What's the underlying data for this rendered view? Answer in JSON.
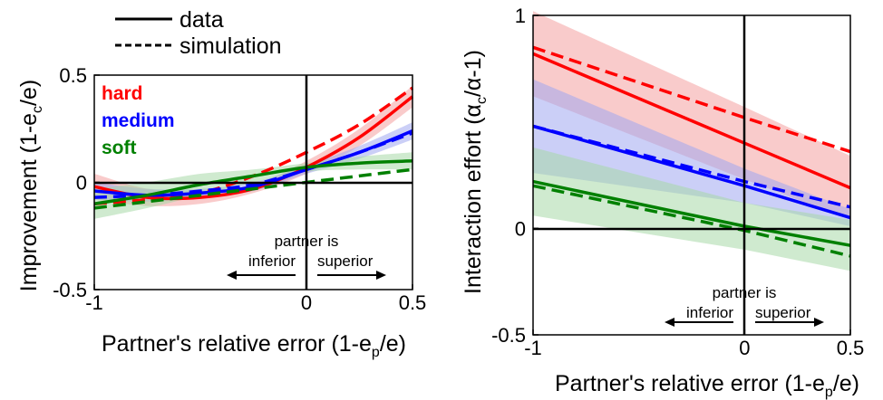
{
  "legend": {
    "solid_label": "data",
    "dashed_label": "simulation"
  },
  "annotation": {
    "line1": "partner is",
    "inferior": "inferior",
    "superior": "superior"
  },
  "colors": {
    "hard": "#ff0000",
    "medium": "#0000ff",
    "soft": "#008000",
    "hard_band": "#f4a0a0",
    "medium_band": "#a0a8f0",
    "soft_band": "#a8d8a8"
  },
  "chart_data": [
    {
      "type": "line",
      "title": "",
      "xlabel": "Partner's relative error (1-e_p/e)",
      "ylabel": "Improvement (1-e_c/e)",
      "xlim": [
        -1,
        0.5
      ],
      "ylim": [
        -0.5,
        0.5
      ],
      "x_ticks": [
        "-1",
        "0",
        "0.5"
      ],
      "y_ticks": [
        "-0.5",
        "0",
        "0.5"
      ],
      "grid": false,
      "legend_position": "top-left",
      "reference_lines": {
        "horizontal_at": 0,
        "vertical_at": 0
      },
      "x": [
        -1,
        -0.75,
        -0.5,
        -0.25,
        0,
        0.25,
        0.5
      ],
      "series": [
        {
          "name": "hard",
          "data": [
            -0.02,
            -0.07,
            -0.07,
            -0.03,
            0.07,
            0.21,
            0.4
          ],
          "simulation": [
            -0.1,
            -0.08,
            -0.05,
            0.03,
            0.14,
            0.27,
            0.44
          ],
          "band": [
            0.06,
            0.04,
            0.03,
            0.02,
            0.03,
            0.04,
            0.05
          ]
        },
        {
          "name": "medium",
          "data": [
            -0.04,
            -0.06,
            -0.05,
            -0.02,
            0.06,
            0.14,
            0.24
          ],
          "simulation": [
            -0.07,
            -0.06,
            -0.04,
            -0.01,
            0.06,
            0.14,
            0.23
          ],
          "band": [
            0.04,
            0.03,
            0.02,
            0.02,
            0.02,
            0.03,
            0.04
          ]
        },
        {
          "name": "soft",
          "data": [
            -0.1,
            -0.06,
            -0.01,
            0.03,
            0.07,
            0.09,
            0.1
          ],
          "simulation": [
            -0.12,
            -0.09,
            -0.06,
            -0.03,
            0.0,
            0.03,
            0.06
          ],
          "band": [
            0.07,
            0.06,
            0.05,
            0.03,
            0.02,
            0.03,
            0.04
          ]
        }
      ]
    },
    {
      "type": "line",
      "title": "",
      "xlabel": "Partner's relative error (1-e_p/e)",
      "ylabel": "Interaction effort (α_c/α-1)",
      "xlim": [
        -1,
        0.5
      ],
      "ylim": [
        -0.5,
        1
      ],
      "x_ticks": [
        "-1",
        "0",
        "0.5"
      ],
      "y_ticks": [
        "-0.5",
        "0",
        "1"
      ],
      "grid": false,
      "reference_lines": {
        "horizontal_at": 0,
        "vertical_at": 0
      },
      "x": [
        -1,
        0,
        0.5
      ],
      "series": [
        {
          "name": "hard",
          "data": [
            0.82,
            0.4,
            0.19
          ],
          "simulation": [
            0.85,
            0.52,
            0.36
          ],
          "band_width": [
            0.2,
            0.17,
            0.15
          ]
        },
        {
          "name": "medium",
          "data": [
            0.48,
            0.2,
            0.05
          ],
          "simulation": [
            0.48,
            0.22,
            0.1
          ],
          "band_width": [
            0.22,
            0.08,
            0.04
          ]
        },
        {
          "name": "soft",
          "data": [
            0.22,
            0.01,
            -0.08
          ],
          "simulation": [
            0.2,
            -0.01,
            -0.13
          ],
          "band_width": [
            0.16,
            0.11,
            0.12
          ]
        }
      ]
    }
  ]
}
